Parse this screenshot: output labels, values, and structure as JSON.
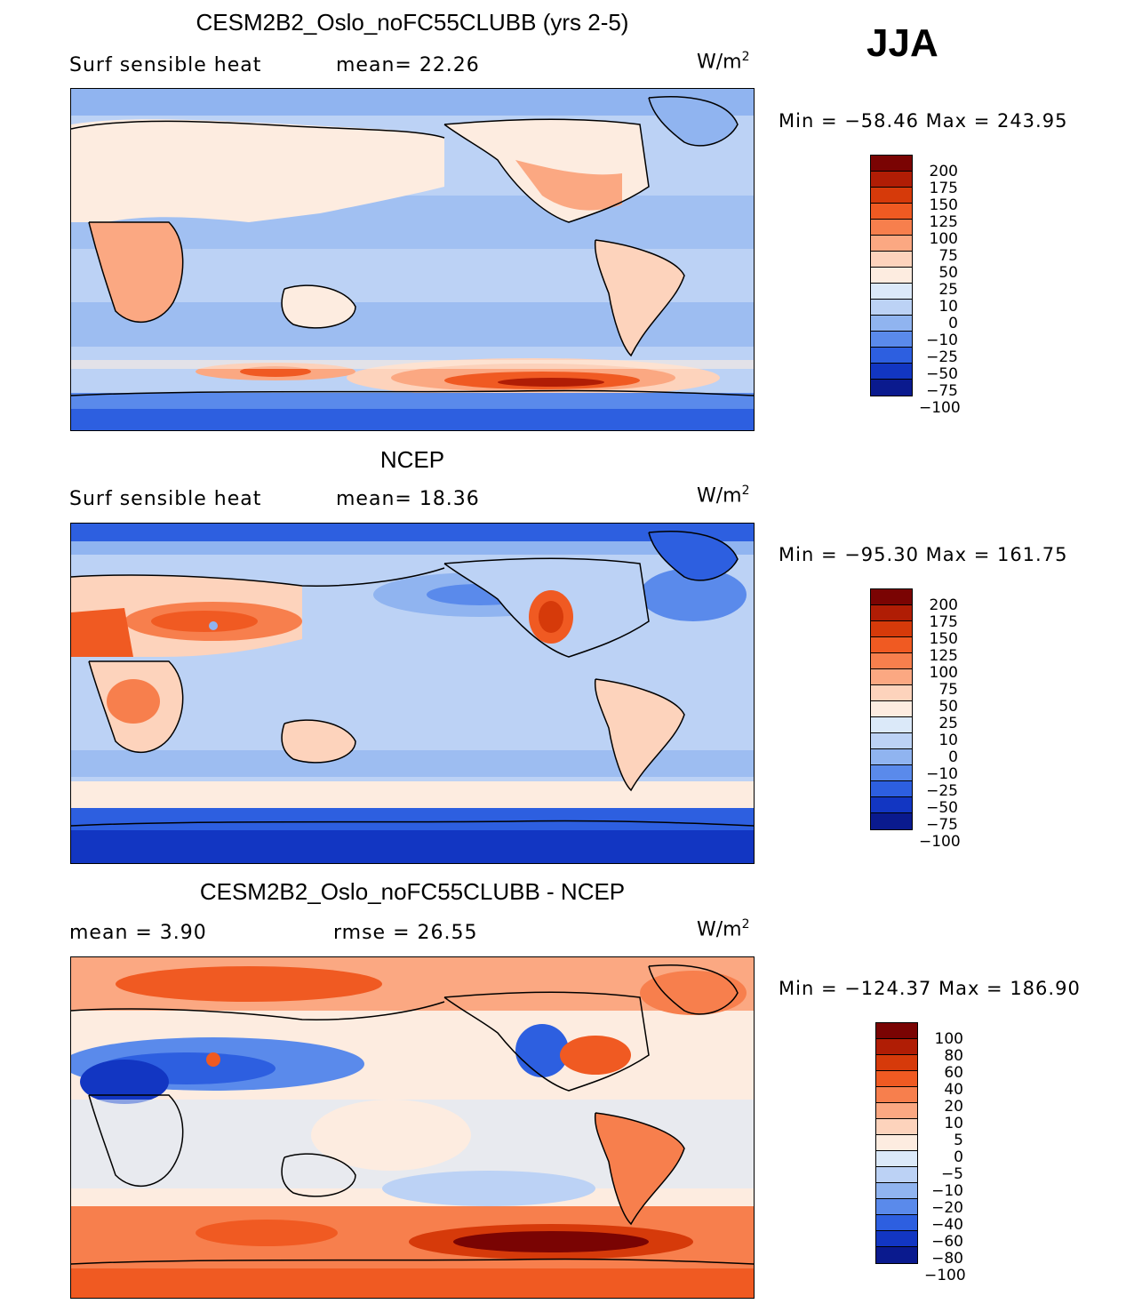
{
  "season": "JJA",
  "panels": [
    {
      "title": "CESM2B2_Oslo_noFC55CLUBB (yrs 2-5)",
      "sub_left": "Surf sensible heat",
      "sub_mid": "mean=   22.26",
      "unit_base": "W/m",
      "unit_sup": "2",
      "minmax": "Min = −58.46 Max = 243.95",
      "colorbar": [
        "200",
        "175",
        "150",
        "125",
        "100",
        "75",
        "50",
        "25",
        "10",
        "0",
        "−10",
        "−25",
        "−50",
        "−75",
        "−100"
      ]
    },
    {
      "title": "NCEP",
      "sub_left": "Surf sensible heat",
      "sub_mid": "mean=   18.36",
      "unit_base": "W/m",
      "unit_sup": "2",
      "minmax": "Min = −95.30 Max = 161.75",
      "colorbar": [
        "200",
        "175",
        "150",
        "125",
        "100",
        "75",
        "50",
        "25",
        "10",
        "0",
        "−10",
        "−25",
        "−50",
        "−75",
        "−100"
      ]
    },
    {
      "title": "CESM2B2_Oslo_noFC55CLUBB - NCEP",
      "sub_left": "mean =    3.90",
      "sub_mid": "rmse =   26.55",
      "unit_base": "W/m",
      "unit_sup": "2",
      "minmax": "Min = −124.37 Max = 186.90",
      "colorbar": [
        "100",
        "80",
        "60",
        "40",
        "20",
        "10",
        "5",
        "0",
        "−5",
        "−10",
        "−20",
        "−40",
        "−60",
        "−80",
        "−100"
      ]
    }
  ],
  "colors": {
    "scale": [
      "#7a0403",
      "#b01d05",
      "#d63a0a",
      "#f05a22",
      "#f77f4d",
      "#fba882",
      "#fdd3bc",
      "#fdece0",
      "#dbe9f9",
      "#bcd2f5",
      "#90b4f0",
      "#5a8aeb",
      "#2d5fe0",
      "#1236c2",
      "#0a1a8e"
    ]
  }
}
